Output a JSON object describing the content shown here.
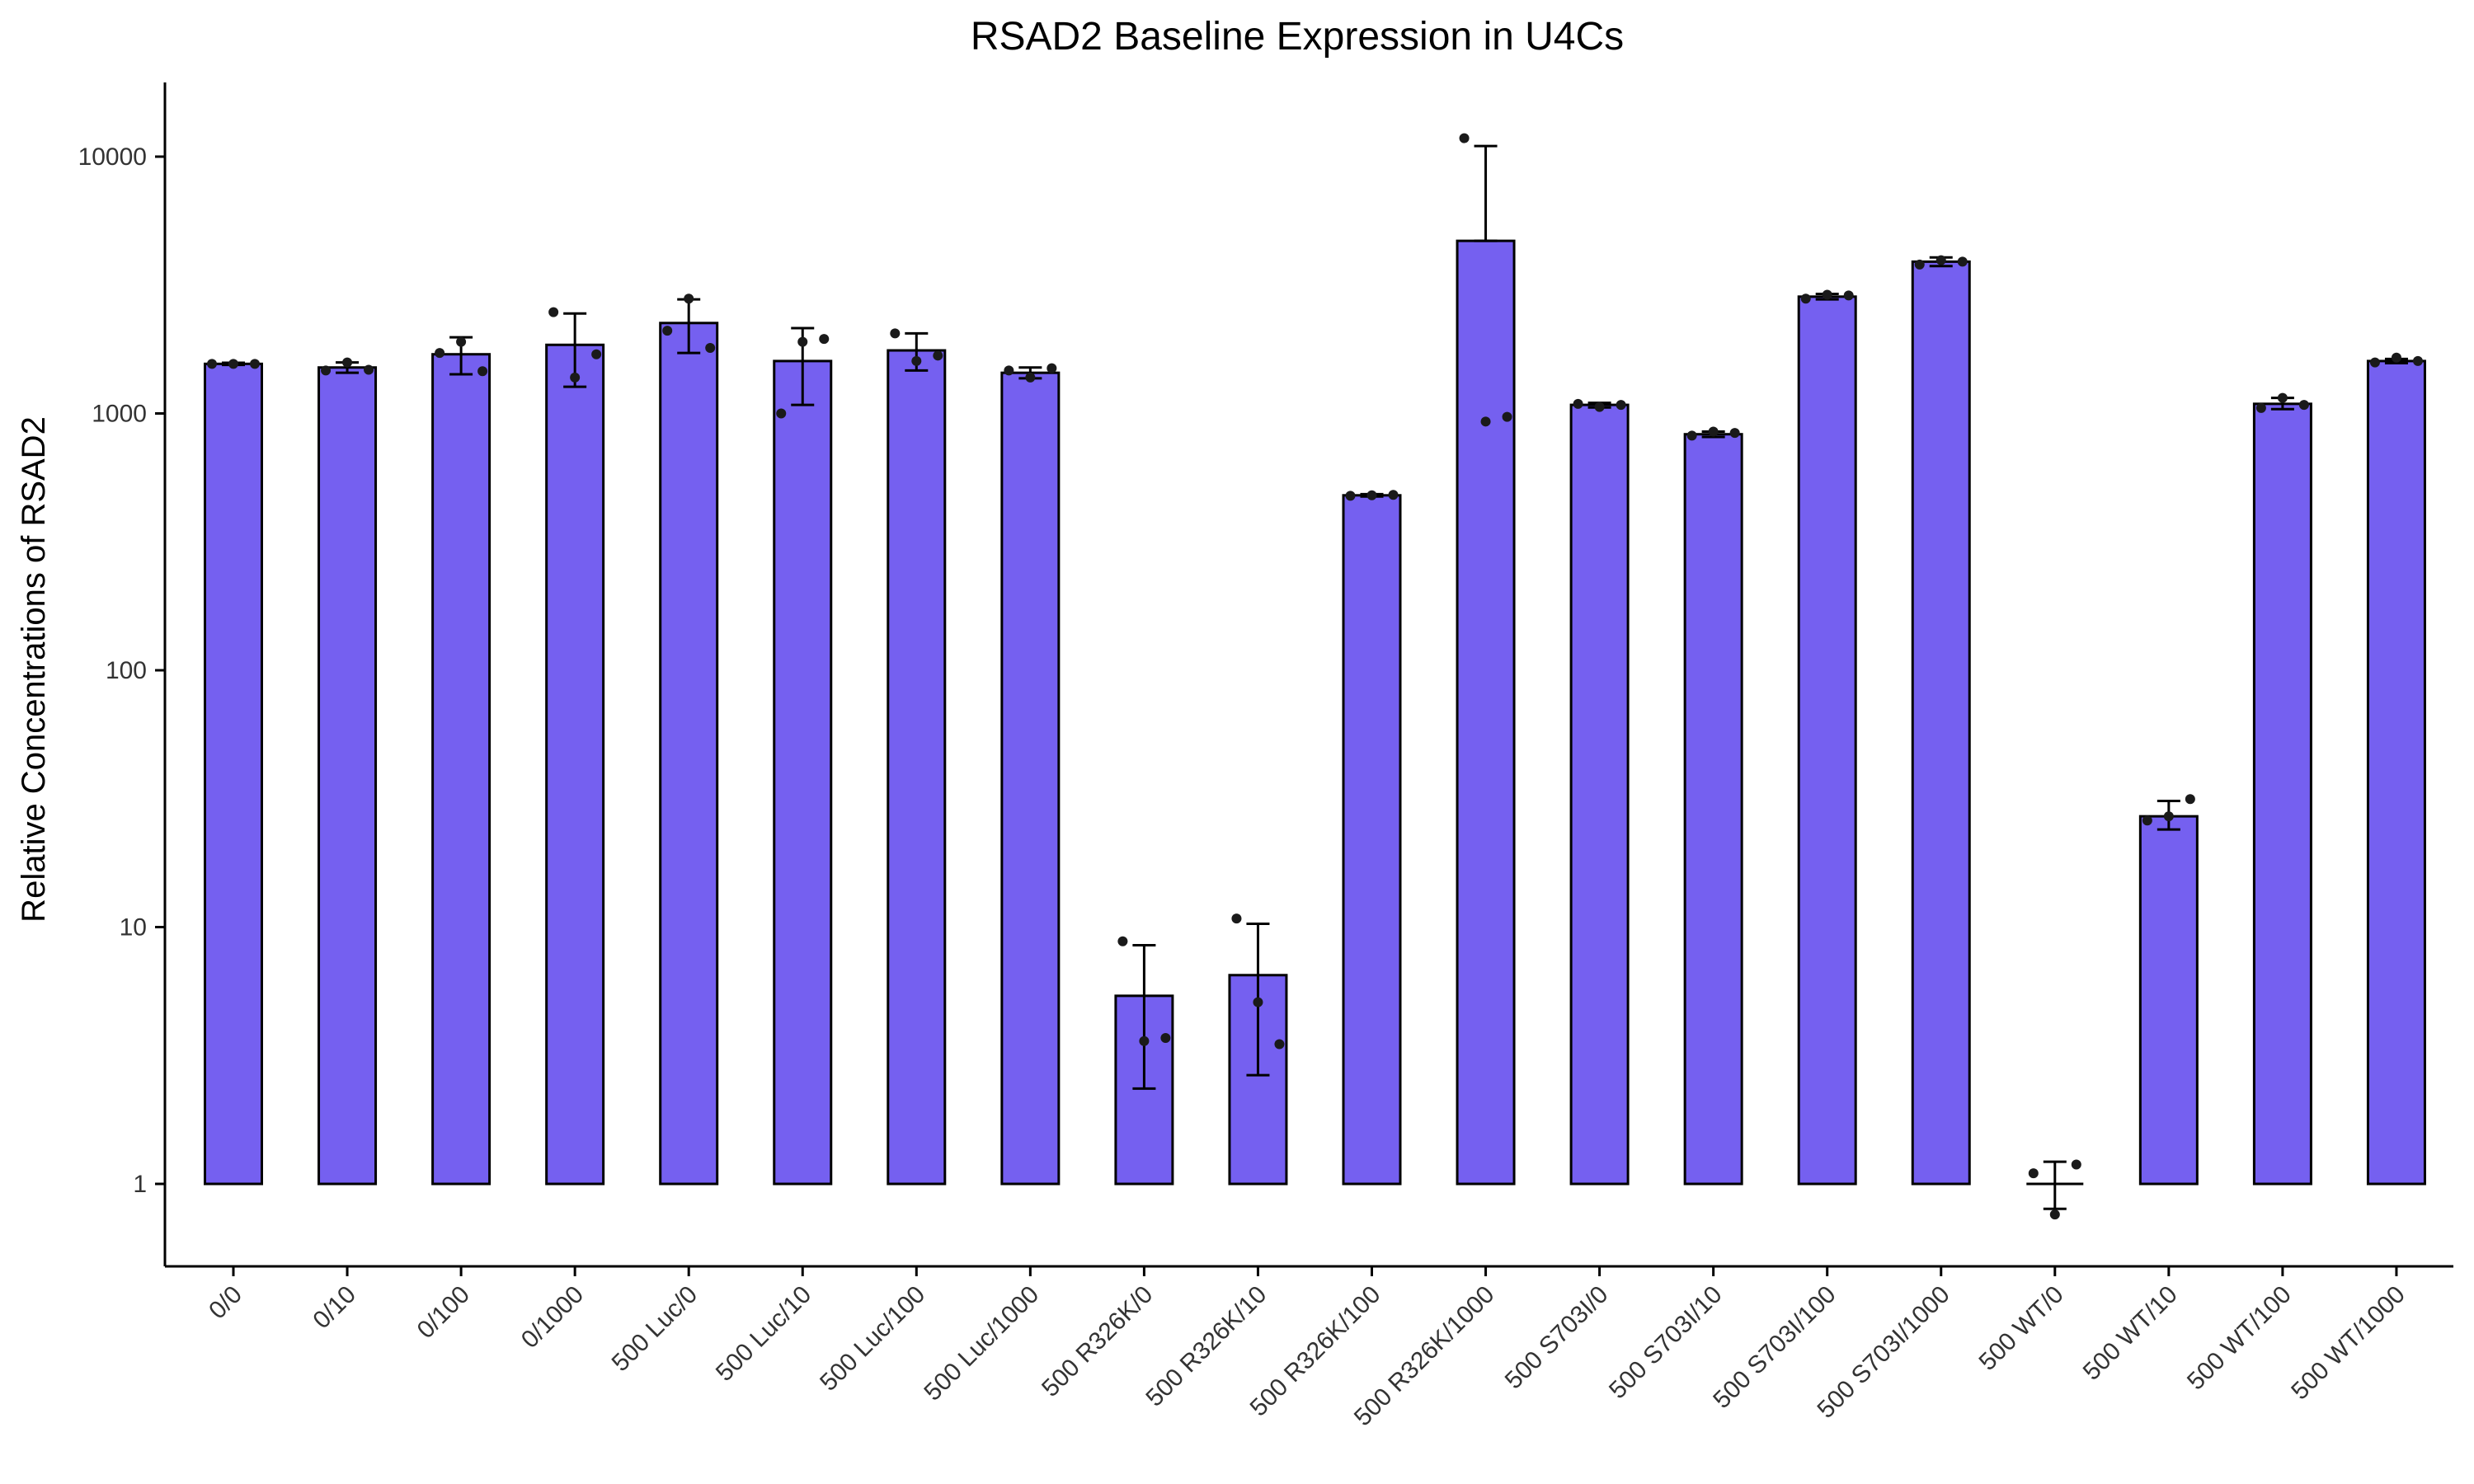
{
  "chart_data": {
    "type": "bar",
    "title": "RSAD2 Baseline Expression in U4Cs",
    "xlabel": "",
    "ylabel": "Relative Concentrations of RSAD2",
    "y_scale": "log10",
    "ylim": [
      0.4,
      20000
    ],
    "yticks": [
      1,
      10,
      100,
      1000,
      10000
    ],
    "ytick_labels": [
      "1",
      "10",
      "100",
      "1000",
      "10000"
    ],
    "bar_color": "#7560f0",
    "bar_baseline": 1,
    "grid": false,
    "categories": [
      "0/0",
      "0/10",
      "0/100",
      "0/1000",
      "500 Luc/0",
      "500 Luc/10",
      "500 Luc/100",
      "500 Luc/1000",
      "500 R326K/0",
      "500 R326K/10",
      "500 R326K/100",
      "500 R326K/1000",
      "500 S703I/0",
      "500 S703I/10",
      "500 S703I/100",
      "500 S703I/1000",
      "500 WT/0",
      "500 WT/10",
      "500 WT/100",
      "500 WT/1000"
    ],
    "values": [
      1560,
      1510,
      1700,
      1850,
      2250,
      1600,
      1760,
      1440,
      5.4,
      6.5,
      480,
      4700,
      1080,
      830,
      2850,
      3900,
      1.0,
      27,
      1090,
      1600
    ],
    "error_low": [
      1545,
      1440,
      1420,
      1270,
      1720,
      1080,
      1470,
      1370,
      2.35,
      2.65,
      475,
      4700,
      1055,
      810,
      2780,
      3750,
      0.8,
      24,
      1040,
      1570
    ],
    "error_high": [
      1575,
      1580,
      1980,
      2450,
      2780,
      2150,
      2050,
      1510,
      8.5,
      10.3,
      485,
      11000,
      1100,
      850,
      2920,
      4050,
      1.22,
      31,
      1150,
      1630
    ],
    "points": [
      [
        1560,
        1560,
        1560
      ],
      [
        1470,
        1580,
        1480
      ],
      [
        1720,
        1900,
        1460
      ],
      [
        2480,
        1380,
        1700
      ],
      [
        2100,
        2800,
        1800
      ],
      [
        1000,
        1900,
        1950
      ],
      [
        2050,
        1600,
        1680
      ],
      [
        1470,
        1380,
        1500
      ],
      [
        8.8,
        3.6,
        3.7
      ],
      [
        10.8,
        5.1,
        3.5
      ],
      [
        478,
        480,
        482
      ],
      [
        11800,
        930,
        970
      ],
      [
        1090,
        1060,
        1080
      ],
      [
        820,
        850,
        840
      ],
      [
        2800,
        2900,
        2880
      ],
      [
        3800,
        3950,
        3900
      ],
      [
        1.1,
        0.76,
        1.19
      ],
      [
        26,
        27,
        31.5
      ],
      [
        1050,
        1150,
        1080
      ],
      [
        1580,
        1650,
        1600
      ]
    ]
  }
}
